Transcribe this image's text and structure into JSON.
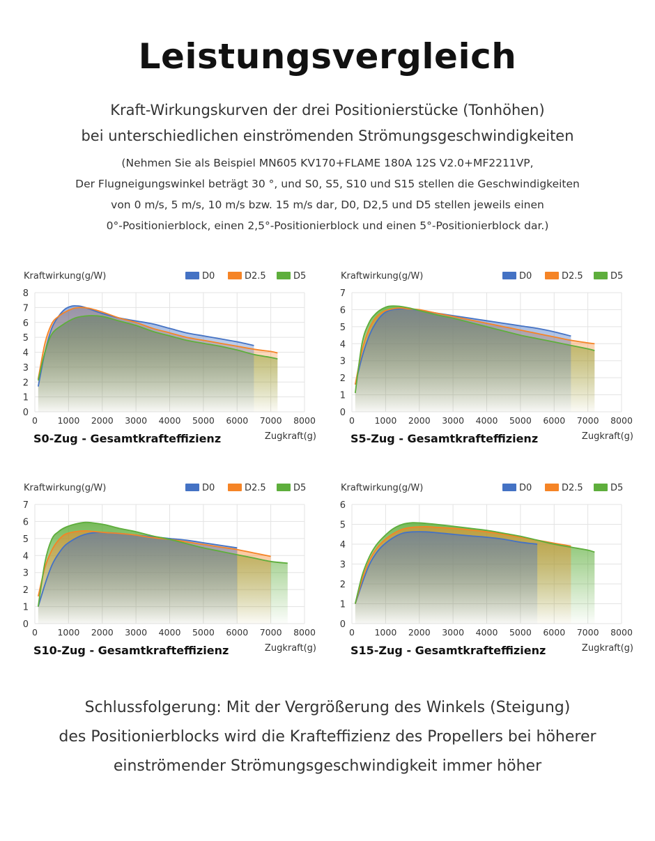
{
  "header": {
    "title": "Leistungsvergleich",
    "subtitle_1": "Kraft-Wirkungskurven der drei Positionierstücke (Tonhöhen)",
    "subtitle_2": "bei unterschiedlichen einströmenden Strömungsgeschwindigkeiten",
    "note_1": "(Nehmen Sie als Beispiel MN605 KV170+FLAME 180A 12S V2.0+MF2211VP,",
    "note_2": "Der Flugneigungswinkel beträgt 30 °, und S0, S5, S10 und S15 stellen die Geschwindigkeiten",
    "note_3": "von 0 m/s, 5 m/s, 10 m/s bzw. 15 m/s dar, D0, D2,5 und D5 stellen jeweils einen",
    "note_4": "0°-Positionierblock, einen 2,5°-Positionierblock und einen 5°-Positionierblock dar.)"
  },
  "conclusion": {
    "line_1": "Schlussfolgerung: Mit der Vergrößerung des Winkels (Steigung)",
    "line_2": "des Positionierblocks wird die Krafteffizienz des Propellers bei höherer",
    "line_3": "einströmender Strömungsgeschwindigkeit immer höher"
  },
  "colors": {
    "D0": "#4472C4",
    "D2.5": "#F58426",
    "D5": "#5EAE3C"
  },
  "chart_data": [
    {
      "type": "area",
      "title": "S0-Zug - Gesamtkrafteffizienz",
      "xlabel": "Zugkraft(g)",
      "ylabel": "Kraftwirkung(g/W)",
      "xlim": [
        0,
        8000
      ],
      "ylim": [
        0,
        8
      ],
      "xticks": [
        0,
        1000,
        2000,
        3000,
        4000,
        5000,
        6000,
        7000,
        8000
      ],
      "yticks": [
        0,
        1,
        2,
        3,
        4,
        5,
        6,
        7,
        8
      ],
      "legend_position": "top-right",
      "grid": true,
      "series": [
        {
          "name": "D0",
          "points": [
            [
              100,
              1.7
            ],
            [
              300,
              4.0
            ],
            [
              500,
              5.6
            ],
            [
              700,
              6.4
            ],
            [
              900,
              6.9
            ],
            [
              1100,
              7.1
            ],
            [
              1300,
              7.1
            ],
            [
              1500,
              7.0
            ],
            [
              2000,
              6.6
            ],
            [
              2500,
              6.3
            ],
            [
              3000,
              6.1
            ],
            [
              3500,
              5.9
            ],
            [
              4000,
              5.6
            ],
            [
              4500,
              5.3
            ],
            [
              5000,
              5.1
            ],
            [
              5500,
              4.9
            ],
            [
              6000,
              4.7
            ],
            [
              6500,
              4.45
            ]
          ]
        },
        {
          "name": "D2.5",
          "points": [
            [
              100,
              2.2
            ],
            [
              300,
              4.6
            ],
            [
              500,
              5.9
            ],
            [
              700,
              6.4
            ],
            [
              900,
              6.7
            ],
            [
              1100,
              6.9
            ],
            [
              1300,
              7.0
            ],
            [
              1600,
              6.95
            ],
            [
              2000,
              6.7
            ],
            [
              2500,
              6.3
            ],
            [
              3000,
              6.0
            ],
            [
              3500,
              5.6
            ],
            [
              4000,
              5.3
            ],
            [
              4500,
              5.0
            ],
            [
              5000,
              4.8
            ],
            [
              5500,
              4.6
            ],
            [
              6000,
              4.4
            ],
            [
              6500,
              4.2
            ],
            [
              7000,
              4.05
            ],
            [
              7200,
              3.95
            ]
          ]
        },
        {
          "name": "D5",
          "points": [
            [
              100,
              2.1
            ],
            [
              300,
              4.0
            ],
            [
              500,
              5.2
            ],
            [
              800,
              5.8
            ],
            [
              1200,
              6.3
            ],
            [
              1600,
              6.45
            ],
            [
              2000,
              6.4
            ],
            [
              2500,
              6.1
            ],
            [
              3000,
              5.8
            ],
            [
              3500,
              5.4
            ],
            [
              4000,
              5.1
            ],
            [
              4500,
              4.8
            ],
            [
              5000,
              4.6
            ],
            [
              5500,
              4.4
            ],
            [
              6000,
              4.15
            ],
            [
              6500,
              3.85
            ],
            [
              7000,
              3.65
            ],
            [
              7200,
              3.55
            ]
          ]
        }
      ]
    },
    {
      "type": "area",
      "title": "S5-Zug - Gesamtkrafteffizienz",
      "xlabel": "Zugkraft(g)",
      "ylabel": "Kraftwirkung(g/W)",
      "xlim": [
        0,
        8000
      ],
      "ylim": [
        0,
        7
      ],
      "xticks": [
        0,
        1000,
        2000,
        3000,
        4000,
        5000,
        6000,
        7000,
        8000
      ],
      "yticks": [
        0,
        1,
        2,
        3,
        4,
        5,
        6,
        7
      ],
      "legend_position": "top-right",
      "grid": true,
      "series": [
        {
          "name": "D0",
          "points": [
            [
              100,
              1.6
            ],
            [
              300,
              3.2
            ],
            [
              500,
              4.4
            ],
            [
              700,
              5.2
            ],
            [
              900,
              5.7
            ],
            [
              1100,
              5.95
            ],
            [
              1400,
              6.05
            ],
            [
              1700,
              6.05
            ],
            [
              2000,
              5.95
            ],
            [
              2500,
              5.8
            ],
            [
              3000,
              5.65
            ],
            [
              3500,
              5.5
            ],
            [
              4000,
              5.35
            ],
            [
              4500,
              5.2
            ],
            [
              5000,
              5.05
            ],
            [
              5500,
              4.9
            ],
            [
              6000,
              4.7
            ],
            [
              6500,
              4.45
            ]
          ]
        },
        {
          "name": "D2.5",
          "points": [
            [
              100,
              1.6
            ],
            [
              300,
              3.6
            ],
            [
              500,
              4.8
            ],
            [
              700,
              5.5
            ],
            [
              900,
              5.85
            ],
            [
              1100,
              6.0
            ],
            [
              1400,
              6.1
            ],
            [
              1700,
              6.05
            ],
            [
              2000,
              6.0
            ],
            [
              2500,
              5.8
            ],
            [
              3000,
              5.6
            ],
            [
              3500,
              5.4
            ],
            [
              4000,
              5.2
            ],
            [
              4500,
              5.0
            ],
            [
              5000,
              4.8
            ],
            [
              5500,
              4.6
            ],
            [
              6000,
              4.4
            ],
            [
              6500,
              4.2
            ],
            [
              7000,
              4.05
            ],
            [
              7200,
              4.0
            ]
          ]
        },
        {
          "name": "D5",
          "points": [
            [
              100,
              1.1
            ],
            [
              300,
              4.0
            ],
            [
              500,
              5.2
            ],
            [
              700,
              5.75
            ],
            [
              900,
              6.05
            ],
            [
              1100,
              6.2
            ],
            [
              1400,
              6.2
            ],
            [
              1700,
              6.1
            ],
            [
              2000,
              5.95
            ],
            [
              2500,
              5.7
            ],
            [
              3000,
              5.5
            ],
            [
              3500,
              5.25
            ],
            [
              4000,
              5.0
            ],
            [
              4500,
              4.75
            ],
            [
              5000,
              4.5
            ],
            [
              5500,
              4.3
            ],
            [
              6000,
              4.1
            ],
            [
              6500,
              3.9
            ],
            [
              7000,
              3.7
            ],
            [
              7200,
              3.6
            ]
          ]
        }
      ]
    },
    {
      "type": "area",
      "title": "S10-Zug - Gesamtkrafteffizienz",
      "xlabel": "Zugkraft(g)",
      "ylabel": "Kraftwirkung(g/W)",
      "xlim": [
        0,
        8000
      ],
      "ylim": [
        0,
        7
      ],
      "xticks": [
        0,
        1000,
        2000,
        3000,
        4000,
        5000,
        6000,
        7000,
        8000
      ],
      "yticks": [
        0,
        1,
        2,
        3,
        4,
        5,
        6,
        7
      ],
      "legend_position": "top-right",
      "grid": true,
      "series": [
        {
          "name": "D0",
          "points": [
            [
              100,
              1.0
            ],
            [
              300,
              2.3
            ],
            [
              500,
              3.4
            ],
            [
              700,
              4.1
            ],
            [
              900,
              4.6
            ],
            [
              1200,
              5.0
            ],
            [
              1500,
              5.25
            ],
            [
              1800,
              5.35
            ],
            [
              2100,
              5.35
            ],
            [
              2500,
              5.3
            ],
            [
              3000,
              5.2
            ],
            [
              3500,
              5.1
            ],
            [
              4000,
              5.0
            ],
            [
              4500,
              4.9
            ],
            [
              5000,
              4.75
            ],
            [
              5500,
              4.6
            ],
            [
              6000,
              4.45
            ]
          ]
        },
        {
          "name": "D2.5",
          "points": [
            [
              100,
              1.6
            ],
            [
              300,
              3.3
            ],
            [
              500,
              4.3
            ],
            [
              700,
              4.9
            ],
            [
              900,
              5.25
            ],
            [
              1200,
              5.4
            ],
            [
              1500,
              5.45
            ],
            [
              1800,
              5.4
            ],
            [
              2100,
              5.35
            ],
            [
              2500,
              5.3
            ],
            [
              3000,
              5.2
            ],
            [
              3500,
              5.05
            ],
            [
              4000,
              4.95
            ],
            [
              4500,
              4.8
            ],
            [
              5000,
              4.65
            ],
            [
              5500,
              4.5
            ],
            [
              6000,
              4.35
            ],
            [
              6500,
              4.15
            ],
            [
              7000,
              3.95
            ]
          ]
        },
        {
          "name": "D5",
          "points": [
            [
              100,
              1.0
            ],
            [
              300,
              3.6
            ],
            [
              500,
              4.95
            ],
            [
              700,
              5.4
            ],
            [
              900,
              5.65
            ],
            [
              1200,
              5.85
            ],
            [
              1500,
              5.95
            ],
            [
              1800,
              5.9
            ],
            [
              2100,
              5.8
            ],
            [
              2500,
              5.6
            ],
            [
              3000,
              5.4
            ],
            [
              3500,
              5.15
            ],
            [
              4000,
              4.95
            ],
            [
              4500,
              4.7
            ],
            [
              5000,
              4.45
            ],
            [
              5500,
              4.25
            ],
            [
              6000,
              4.05
            ],
            [
              6500,
              3.85
            ],
            [
              7000,
              3.65
            ],
            [
              7500,
              3.55
            ]
          ]
        }
      ]
    },
    {
      "type": "area",
      "title": "S15-Zug - Gesamtkrafteffizienz",
      "xlabel": "Zugkraft(g)",
      "ylabel": "Kraftwirkung(g/W)",
      "xlim": [
        0,
        8000
      ],
      "ylim": [
        0,
        6
      ],
      "xticks": [
        0,
        1000,
        2000,
        3000,
        4000,
        5000,
        6000,
        7000,
        8000
      ],
      "yticks": [
        0,
        1,
        2,
        3,
        4,
        5,
        6
      ],
      "legend_position": "top-right",
      "grid": true,
      "series": [
        {
          "name": "D0",
          "points": [
            [
              100,
              1.0
            ],
            [
              300,
              2.0
            ],
            [
              500,
              2.9
            ],
            [
              700,
              3.5
            ],
            [
              900,
              3.9
            ],
            [
              1200,
              4.3
            ],
            [
              1500,
              4.55
            ],
            [
              1800,
              4.62
            ],
            [
              2200,
              4.62
            ],
            [
              2500,
              4.58
            ],
            [
              3000,
              4.5
            ],
            [
              3500,
              4.42
            ],
            [
              4000,
              4.35
            ],
            [
              4500,
              4.25
            ],
            [
              5000,
              4.1
            ],
            [
              5500,
              4.0
            ]
          ]
        },
        {
          "name": "D2.5",
          "points": [
            [
              100,
              1.0
            ],
            [
              300,
              2.2
            ],
            [
              500,
              3.1
            ],
            [
              700,
              3.7
            ],
            [
              900,
              4.1
            ],
            [
              1200,
              4.5
            ],
            [
              1500,
              4.75
            ],
            [
              1800,
              4.85
            ],
            [
              2200,
              4.88
            ],
            [
              2500,
              4.85
            ],
            [
              3000,
              4.8
            ],
            [
              3500,
              4.72
            ],
            [
              4000,
              4.62
            ],
            [
              4500,
              4.5
            ],
            [
              5000,
              4.35
            ],
            [
              5500,
              4.2
            ],
            [
              6000,
              4.05
            ],
            [
              6500,
              3.9
            ]
          ]
        },
        {
          "name": "D5",
          "points": [
            [
              100,
              1.0
            ],
            [
              300,
              2.4
            ],
            [
              500,
              3.3
            ],
            [
              700,
              3.9
            ],
            [
              900,
              4.3
            ],
            [
              1200,
              4.75
            ],
            [
              1500,
              5.0
            ],
            [
              1800,
              5.08
            ],
            [
              2200,
              5.05
            ],
            [
              2500,
              5.0
            ],
            [
              3000,
              4.9
            ],
            [
              3500,
              4.8
            ],
            [
              4000,
              4.7
            ],
            [
              4500,
              4.55
            ],
            [
              5000,
              4.4
            ],
            [
              5500,
              4.2
            ],
            [
              6000,
              4.0
            ],
            [
              6500,
              3.85
            ],
            [
              7000,
              3.7
            ],
            [
              7200,
              3.6
            ]
          ]
        }
      ]
    }
  ]
}
